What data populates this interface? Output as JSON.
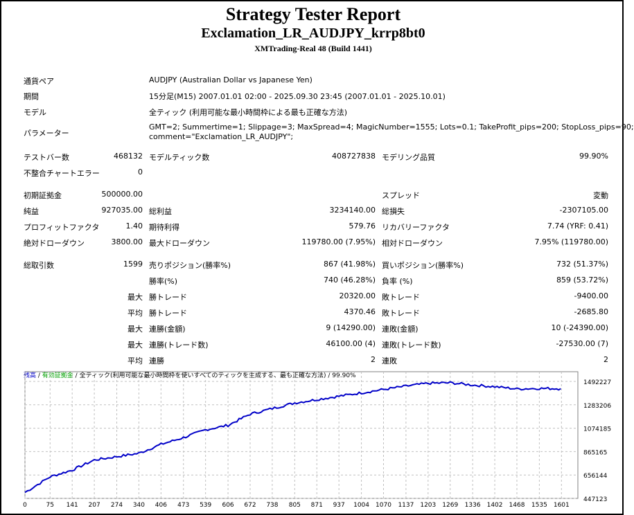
{
  "header": {
    "title": "Strategy Tester Report",
    "ea": "Exclamation_LR_AUDJPY_krrp8bt0",
    "server": "XMTrading-Real 48 (Build 1441)"
  },
  "info": [
    {
      "label": "通貨ペア",
      "value": "AUDJPY (Australian Dollar vs Japanese Yen)"
    },
    {
      "label": "期間",
      "value": "15分足(M15) 2007.01.01 02:00 - 2025.09.30 23:45 (2007.01.01 - 2025.10.01)"
    },
    {
      "label": "モデル",
      "value": "全ティック (利用可能な最小時間枠による最も正確な方法)"
    },
    {
      "label": "パラメーター",
      "value": "GMT=2; Summertime=1; Slippage=3; MaxSpread=4; MagicNumber=1555; Lots=0.1; TakeProfit_pips=200; StopLoss_pips=90;",
      "value2": "comment=\"Exclamation_LR_AUDJPY\";"
    }
  ],
  "stats": [
    [
      "テストバー数",
      "468132",
      "モデルティック数",
      "408727838",
      "モデリング品質",
      "99.90%"
    ],
    [
      "不整合チャートエラー",
      "0",
      "",
      "",
      "",
      ""
    ],
    [
      "初期証拠金",
      "500000.00",
      "",
      "",
      "スプレッド",
      "変動"
    ],
    [
      "純益",
      "927035.00",
      "総利益",
      "3234140.00",
      "総損失",
      "-2307105.00"
    ],
    [
      "プロフィットファクタ",
      "1.40",
      "期待利得",
      "579.76",
      "リカバリーファクタ",
      "7.74 (YRF: 0.41)"
    ],
    [
      "絶対ドローダウン",
      "3800.00",
      "最大ドローダウン",
      "119780.00 (7.95%)",
      "相対ドローダウン",
      "7.95% (119780.00)"
    ],
    [
      "総取引数",
      "1599",
      "売りポジション(勝率%)",
      "867 (41.98%)",
      "買いポジション(勝率%)",
      "732 (51.37%)"
    ],
    [
      "",
      "",
      "勝率(%)",
      "740 (46.28%)",
      "負率 (%)",
      "859 (53.72%)"
    ],
    [
      "",
      "最大",
      "勝トレード",
      "20320.00",
      "敗トレード",
      "-9400.00"
    ],
    [
      "",
      "平均",
      "勝トレード",
      "4370.46",
      "敗トレード",
      "-2685.80"
    ],
    [
      "",
      "最大",
      "連勝(金額)",
      "9 (14290.00)",
      "連敗(金額)",
      "10 (-24390.00)"
    ],
    [
      "",
      "最大",
      "連勝(トレード数)",
      "46100.00 (4)",
      "連敗(トレード数)",
      "-27530.00 (7)"
    ],
    [
      "",
      "平均",
      "連勝",
      "2",
      "連敗",
      "2"
    ]
  ],
  "chart_data": {
    "type": "line",
    "legend": {
      "balance": "残高",
      "equity": "有効証拠金",
      "sep": " / ",
      "model": "全ティック(利用可能な最小時間枠を使いすべてのティックを生成する、最も正確な方法)",
      "quality": "99.90%"
    },
    "colors": {
      "balance": "#0000c8",
      "equity": "#00a000",
      "grid": "#c0c0c0"
    },
    "x_ticks": [
      "0",
      "75",
      "141",
      "207",
      "274",
      "340",
      "406",
      "473",
      "539",
      "606",
      "672",
      "738",
      "805",
      "871",
      "937",
      "1004",
      "1070",
      "1137",
      "1203",
      "1269",
      "1336",
      "1402",
      "1468",
      "1535",
      "1601"
    ],
    "y_ticks": [
      "1492227",
      "1283206",
      "1074185",
      "865165",
      "656144",
      "447123"
    ],
    "ylim": [
      447123,
      1492227
    ],
    "xlim": [
      0,
      1650
    ],
    "x": [
      0,
      75,
      141,
      207,
      274,
      340,
      406,
      473,
      539,
      606,
      672,
      738,
      805,
      871,
      937,
      1004,
      1070,
      1137,
      1203,
      1269,
      1336,
      1402,
      1468,
      1535,
      1599
    ],
    "y": [
      500000,
      640000,
      700000,
      790000,
      820000,
      850000,
      930000,
      990000,
      1060000,
      1100000,
      1200000,
      1250000,
      1300000,
      1330000,
      1360000,
      1390000,
      1420000,
      1450000,
      1475000,
      1480000,
      1460000,
      1445000,
      1425000,
      1430000,
      1427035
    ]
  }
}
